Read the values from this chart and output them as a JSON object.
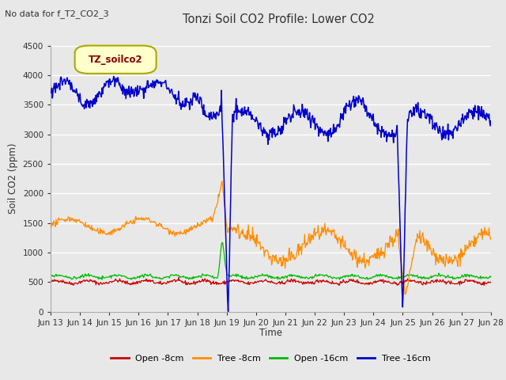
{
  "title": "Tonzi Soil CO2 Profile: Lower CO2",
  "subtitle": "No data for f_T2_CO2_3",
  "ylabel": "Soil CO2 (ppm)",
  "xlabel": "Time",
  "legend_label": "TZ_soilco2",
  "ylim": [
    0,
    4500
  ],
  "yticks": [
    0,
    500,
    1000,
    1500,
    2000,
    2500,
    3000,
    3500,
    4000,
    4500
  ],
  "fig_bg_color": "#e8e8e8",
  "plot_bg_color": "#e8e8e8",
  "grid_color": "#ffffff",
  "title_color": "#444444",
  "colors": {
    "open_8cm": "#cc0000",
    "tree_8cm": "#ff8c00",
    "open_16cm": "#00bb00",
    "tree_16cm": "#0000cc"
  },
  "x_labels": [
    "Jun 13",
    "Jun 14",
    "Jun 15",
    "Jun 16",
    "Jun 17",
    "Jun 18",
    "Jun 19",
    "Jun 20",
    "Jun 21",
    "Jun 22",
    "Jun 23",
    "Jun 24",
    "Jun 25",
    "Jun 26",
    "Jun 27",
    "Jun 28"
  ],
  "legend_entries": [
    "Open -8cm",
    "Tree -8cm",
    "Open -16cm",
    "Tree -16cm"
  ],
  "legend_box_facecolor": "#ffffcc",
  "legend_box_edgecolor": "#aaaa00",
  "legend_text_color": "#880000"
}
